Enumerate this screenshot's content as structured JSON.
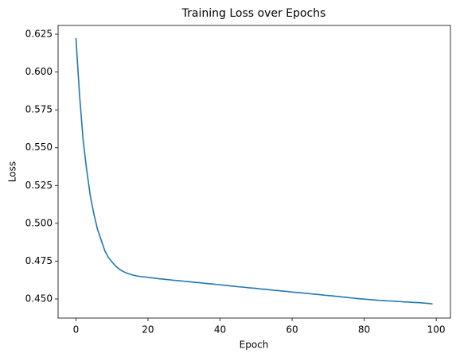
{
  "chart_data": {
    "type": "line",
    "title": "Training Loss over Epochs",
    "x_label": "Epoch",
    "y_label": "Loss",
    "x": [
      0,
      1,
      2,
      3,
      4,
      5,
      6,
      7,
      8,
      9,
      10,
      11,
      12,
      13,
      14,
      15,
      16,
      17,
      18,
      19,
      20,
      21,
      22,
      23,
      24,
      25,
      26,
      27,
      28,
      29,
      30,
      31,
      32,
      33,
      34,
      35,
      36,
      37,
      38,
      39,
      40,
      41,
      42,
      43,
      44,
      45,
      46,
      47,
      48,
      49,
      50,
      51,
      52,
      53,
      54,
      55,
      56,
      57,
      58,
      59,
      60,
      61,
      62,
      63,
      64,
      65,
      66,
      67,
      68,
      69,
      70,
      71,
      72,
      73,
      74,
      75,
      76,
      77,
      78,
      79,
      80,
      81,
      82,
      83,
      84,
      85,
      86,
      87,
      88,
      89,
      90,
      91,
      92,
      93,
      94,
      95,
      96,
      97,
      98,
      99
    ],
    "series": [
      {
        "color": "#1f77b4",
        "values": [
          0.6225,
          0.585,
          0.555,
          0.535,
          0.518,
          0.506,
          0.496,
          0.489,
          0.482,
          0.4775,
          0.4745,
          0.4718,
          0.4698,
          0.4683,
          0.4672,
          0.4663,
          0.4657,
          0.4652,
          0.4648,
          0.4646,
          0.4643,
          0.464,
          0.4637,
          0.4634,
          0.4632,
          0.4629,
          0.4627,
          0.4624,
          0.4622,
          0.462,
          0.4617,
          0.4615,
          0.4613,
          0.461,
          0.4608,
          0.4606,
          0.4603,
          0.4601,
          0.4599,
          0.4596,
          0.4594,
          0.4591,
          0.4589,
          0.4586,
          0.4584,
          0.4581,
          0.4579,
          0.4577,
          0.4574,
          0.4572,
          0.457,
          0.4567,
          0.4565,
          0.4563,
          0.456,
          0.4558,
          0.4556,
          0.4553,
          0.4551,
          0.4549,
          0.4546,
          0.4544,
          0.4542,
          0.4539,
          0.4537,
          0.4535,
          0.4532,
          0.453,
          0.4528,
          0.4525,
          0.4523,
          0.4521,
          0.4518,
          0.4516,
          0.4513,
          0.4511,
          0.4508,
          0.4506,
          0.4503,
          0.4501,
          0.4499,
          0.4497,
          0.4495,
          0.4493,
          0.4491,
          0.449,
          0.4488,
          0.4487,
          0.4486,
          0.4484,
          0.4483,
          0.4481,
          0.448,
          0.4478,
          0.4477,
          0.4476,
          0.4474,
          0.4472,
          0.447,
          0.4467
        ]
      }
    ],
    "xlim": [
      -4.95,
      103.95
    ],
    "xticks": [
      0,
      20,
      40,
      60,
      80,
      100
    ],
    "ylim": [
      0.4374,
      0.6308
    ],
    "yticks": [
      0.625,
      {
        "value": 0.6,
        "label": "0.600"
      },
      0.575,
      {
        "value": 0.55,
        "label": "0.550"
      },
      0.525,
      {
        "value": 0.5,
        "label": "0.500"
      },
      0.475,
      {
        "value": 0.45,
        "label": "0.450"
      }
    ]
  }
}
